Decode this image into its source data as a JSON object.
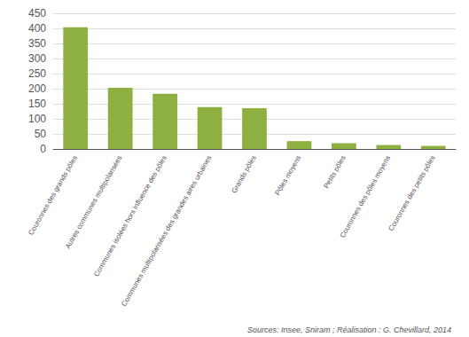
{
  "chart_data": {
    "type": "bar",
    "categories": [
      "Couronnes des grands pôles",
      "Autres communes multipolarisées",
      "Communes isolées hors influence des pôles",
      "Communes multipolarisées des grandes aires urbaines",
      "Grands pôles",
      "Pôles moyens",
      "Petits pôles",
      "Couronnes des pôles moyens",
      "Couronnes des petits pôles"
    ],
    "values": [
      404,
      203,
      183,
      139,
      135,
      26,
      19,
      13,
      10
    ],
    "color": "#8DB040",
    "ylim": [
      0,
      450
    ],
    "yticks": [
      0,
      50,
      100,
      150,
      200,
      250,
      300,
      350,
      400,
      450
    ],
    "grid": true,
    "annotation": "Sources: Insee, Sniram ; Réalisation : G. Chevillard, 2014"
  }
}
